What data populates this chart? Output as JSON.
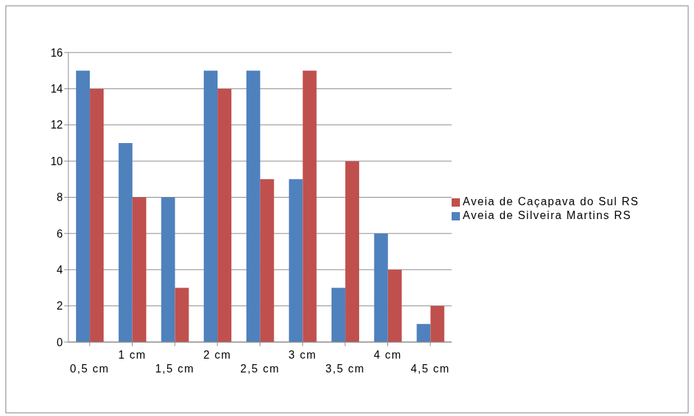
{
  "chart_data": {
    "type": "bar",
    "categories": [
      "0,5 cm",
      "1 cm",
      "1,5 cm",
      "2 cm",
      "2,5 cm",
      "3 cm",
      "3,5 cm",
      "4 cm",
      "4,5 cm"
    ],
    "series": [
      {
        "name": "Aveia de Silveira Martins RS",
        "color": "#4f81bd",
        "values": [
          15,
          11,
          8,
          15,
          15,
          9,
          3,
          6,
          1
        ]
      },
      {
        "name": "Aveia de Caçapava do Sul RS",
        "color": "#c0504d",
        "values": [
          14,
          8,
          3,
          14,
          9,
          15,
          10,
          4,
          2
        ]
      }
    ],
    "ylim": [
      0,
      16
    ],
    "yticks": [
      0,
      2,
      4,
      6,
      8,
      10,
      12,
      14,
      16
    ],
    "grid": "y",
    "legend": "right"
  }
}
